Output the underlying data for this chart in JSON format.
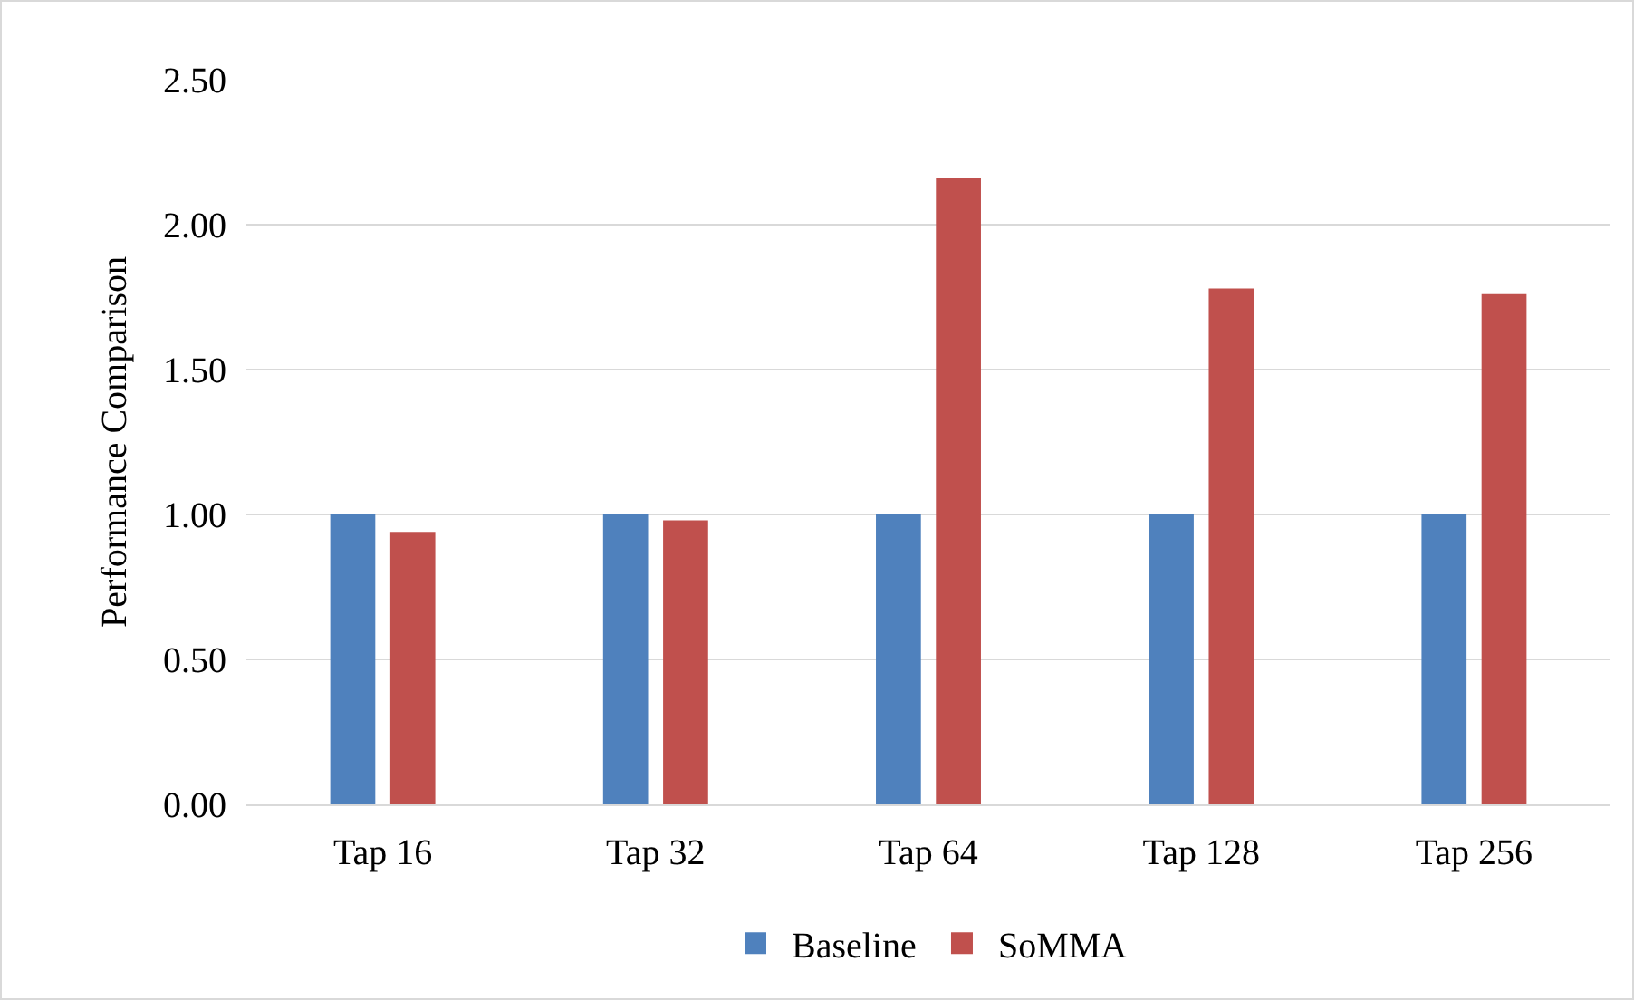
{
  "chart_data": {
    "type": "bar",
    "ylabel": "Performance Comparison",
    "categories": [
      "Tap 16",
      "Tap 32",
      "Tap 64",
      "Tap 128",
      "Tap 256"
    ],
    "series": [
      {
        "name": "Baseline",
        "color": "#4f81bd",
        "values": [
          1,
          1,
          1,
          1,
          1
        ]
      },
      {
        "name": "SoMMA",
        "color": "#c0504d",
        "values": [
          0.94,
          0.98,
          2.16,
          1.78,
          1.76
        ]
      }
    ],
    "ylim": [
      0,
      2.5
    ],
    "yticks": [
      {
        "value": 0,
        "label": "0.00"
      },
      {
        "value": 0.5,
        "label": "0.50"
      },
      {
        "value": 1,
        "label": "1.00"
      },
      {
        "value": 1.5,
        "label": "1.50"
      },
      {
        "value": 2,
        "label": "2.00"
      },
      {
        "value": 2.5,
        "label": "2.50"
      }
    ],
    "grid": "y",
    "legend": "bottom"
  }
}
